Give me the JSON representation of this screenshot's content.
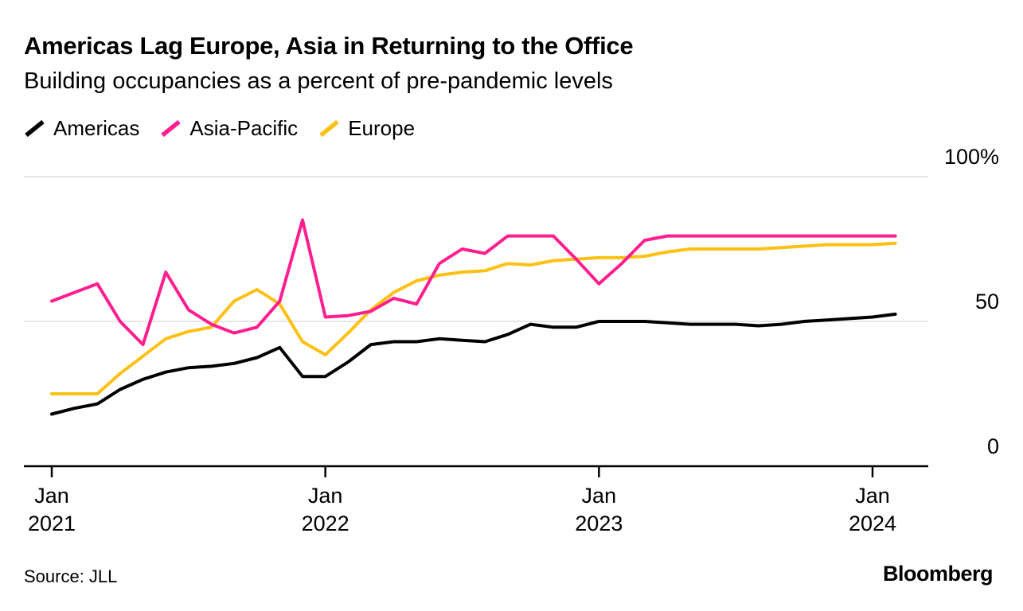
{
  "chart_data": {
    "type": "line",
    "title": "Americas Lag Europe, Asia in Returning to the Office",
    "subtitle": "Building occupancies as a percent of pre-pandemic levels",
    "xlabel": "",
    "ylabel": "",
    "unit": "% of pre-pandemic levels",
    "grid": "horizontal",
    "legend_position": "top-left",
    "ylim": [
      0,
      100
    ],
    "yticks": [
      {
        "value": 0,
        "label": "0"
      },
      {
        "value": 50,
        "label": "50"
      },
      {
        "value": 100,
        "label": "100%"
      }
    ],
    "xticks": [
      {
        "index": 0,
        "line1": "Jan",
        "line2": "2021"
      },
      {
        "index": 12,
        "line1": "Jan",
        "line2": "2022"
      },
      {
        "index": 24,
        "line1": "Jan",
        "line2": "2023"
      },
      {
        "index": 36,
        "line1": "Jan",
        "line2": "2024"
      }
    ],
    "x": [
      "Jan 2021",
      "Feb 2021",
      "Mar 2021",
      "Apr 2021",
      "May 2021",
      "Jun 2021",
      "Jul 2021",
      "Aug 2021",
      "Sep 2021",
      "Oct 2021",
      "Nov 2021",
      "Dec 2021",
      "Jan 2022",
      "Feb 2022",
      "Mar 2022",
      "Apr 2022",
      "May 2022",
      "Jun 2022",
      "Jul 2022",
      "Aug 2022",
      "Sep 2022",
      "Oct 2022",
      "Nov 2022",
      "Dec 2022",
      "Jan 2023",
      "Feb 2023",
      "Mar 2023",
      "Apr 2023",
      "May 2023",
      "Jun 2023",
      "Jul 2023",
      "Aug 2023",
      "Sep 2023",
      "Oct 2023",
      "Nov 2023",
      "Dec 2023",
      "Jan 2024",
      "Feb 2024"
    ],
    "series": [
      {
        "name": "Americas",
        "color": "#000000",
        "values": [
          18,
          20,
          21.5,
          26.5,
          30,
          32.5,
          34,
          34.5,
          35.5,
          37.5,
          41,
          31,
          31,
          36,
          42,
          43,
          43,
          44,
          43.5,
          43,
          45.5,
          49,
          48,
          48,
          50,
          50,
          50,
          49.5,
          49,
          49,
          49,
          48.5,
          49,
          50,
          50.5,
          51,
          51.5,
          52.5
        ]
      },
      {
        "name": "Asia-Pacific",
        "color": "#ff1f8f",
        "values": [
          57,
          60,
          63,
          50,
          42,
          67,
          54,
          49,
          46,
          48,
          57,
          85,
          51.5,
          52,
          53.5,
          58,
          56,
          70,
          75,
          73.5,
          79.5,
          79.5,
          79.5,
          71.5,
          63,
          70,
          78,
          79.5,
          79.5,
          79.5,
          79.5,
          79.5,
          79.5,
          79.5,
          79.5,
          79.5,
          79.5,
          79.5
        ]
      },
      {
        "name": "Europe",
        "color": "#fdc013",
        "values": [
          25,
          25,
          25,
          32,
          38,
          44,
          46.5,
          48,
          57,
          61,
          56,
          43,
          38.5,
          46,
          54,
          60,
          64,
          66,
          67,
          67.5,
          70,
          69.5,
          71,
          71.5,
          72,
          72,
          72.5,
          74,
          75,
          75,
          75,
          75,
          75.5,
          76,
          76.5,
          76.5,
          76.5,
          77
        ]
      }
    ]
  },
  "colors": {
    "grid": "#dddddd",
    "axis": "#000000",
    "background": "#ffffff",
    "text": "#000000"
  },
  "footer": {
    "source": "Source: JLL",
    "brand": "Bloomberg"
  }
}
